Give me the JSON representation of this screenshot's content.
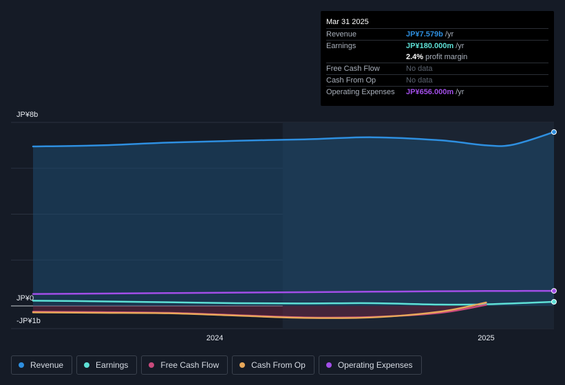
{
  "chart_data": {
    "type": "line",
    "y_unit_labels": {
      "top": "JP¥8b",
      "zero": "JP¥0",
      "bottom": "-JP¥1b"
    },
    "ylim": [
      -1000,
      8000
    ],
    "xlim": [
      2023.33,
      2025.25
    ],
    "x_ticks": [
      {
        "value": 2024.0,
        "label": "2024"
      },
      {
        "value": 2025.0,
        "label": "2025"
      }
    ],
    "forecast_start": 2024.25,
    "grid": true,
    "series": [
      {
        "name": "Revenue",
        "color": "#2e8fe0",
        "area": true,
        "x": [
          2023.33,
          2023.58,
          2023.83,
          2024.08,
          2024.33,
          2024.58,
          2024.83,
          2025.0,
          2025.1,
          2025.25
        ],
        "values": [
          6950,
          7000,
          7120,
          7200,
          7260,
          7350,
          7220,
          7000,
          7030,
          7579
        ]
      },
      {
        "name": "Earnings",
        "color": "#5ee0d6",
        "x": [
          2023.33,
          2023.58,
          2023.83,
          2024.08,
          2024.33,
          2024.58,
          2024.83,
          2025.0,
          2025.25
        ],
        "values": [
          230,
          200,
          160,
          120,
          110,
          120,
          60,
          70,
          180
        ]
      },
      {
        "name": "Free Cash Flow",
        "color": "#c94a7c",
        "x": [
          2023.33,
          2023.58,
          2023.83,
          2024.08,
          2024.33,
          2024.58,
          2024.83,
          2025.0
        ],
        "values": [
          -250,
          -270,
          -300,
          -400,
          -500,
          -480,
          -300,
          50
        ]
      },
      {
        "name": "Cash From Op",
        "color": "#e8a85a",
        "x": [
          2023.33,
          2023.58,
          2023.83,
          2024.08,
          2024.33,
          2024.58,
          2024.83,
          2025.0
        ],
        "values": [
          -280,
          -300,
          -320,
          -420,
          -520,
          -500,
          -250,
          150
        ]
      },
      {
        "name": "Operating Expenses",
        "color": "#a24ee8",
        "x": [
          2023.33,
          2023.58,
          2023.83,
          2024.08,
          2024.33,
          2024.58,
          2024.83,
          2025.0,
          2025.25
        ],
        "values": [
          520,
          540,
          560,
          580,
          600,
          620,
          640,
          650,
          656
        ]
      }
    ]
  },
  "tooltip": {
    "date": "Mar 31 2025",
    "rows": [
      {
        "label": "Revenue",
        "value": "JP¥7.579b",
        "unit": " /yr",
        "color": "#2e8fe0"
      },
      {
        "label": "Earnings",
        "value": "JP¥180.000m",
        "unit": " /yr",
        "color": "#5ee0d6"
      },
      {
        "label": "",
        "value": "2.4%",
        "unit": " profit margin",
        "color": "#ffffff"
      },
      {
        "label": "Free Cash Flow",
        "value": "No data",
        "unit": "",
        "color": "nodata"
      },
      {
        "label": "Cash From Op",
        "value": "No data",
        "unit": "",
        "color": "nodata"
      },
      {
        "label": "Operating Expenses",
        "value": "JP¥656.000m",
        "unit": " /yr",
        "color": "#a24ee8"
      }
    ]
  },
  "legend": [
    {
      "label": "Revenue",
      "color": "#2e8fe0"
    },
    {
      "label": "Earnings",
      "color": "#5ee0d6"
    },
    {
      "label": "Free Cash Flow",
      "color": "#c94a7c"
    },
    {
      "label": "Cash From Op",
      "color": "#e8a85a"
    },
    {
      "label": "Operating Expenses",
      "color": "#a24ee8"
    }
  ]
}
